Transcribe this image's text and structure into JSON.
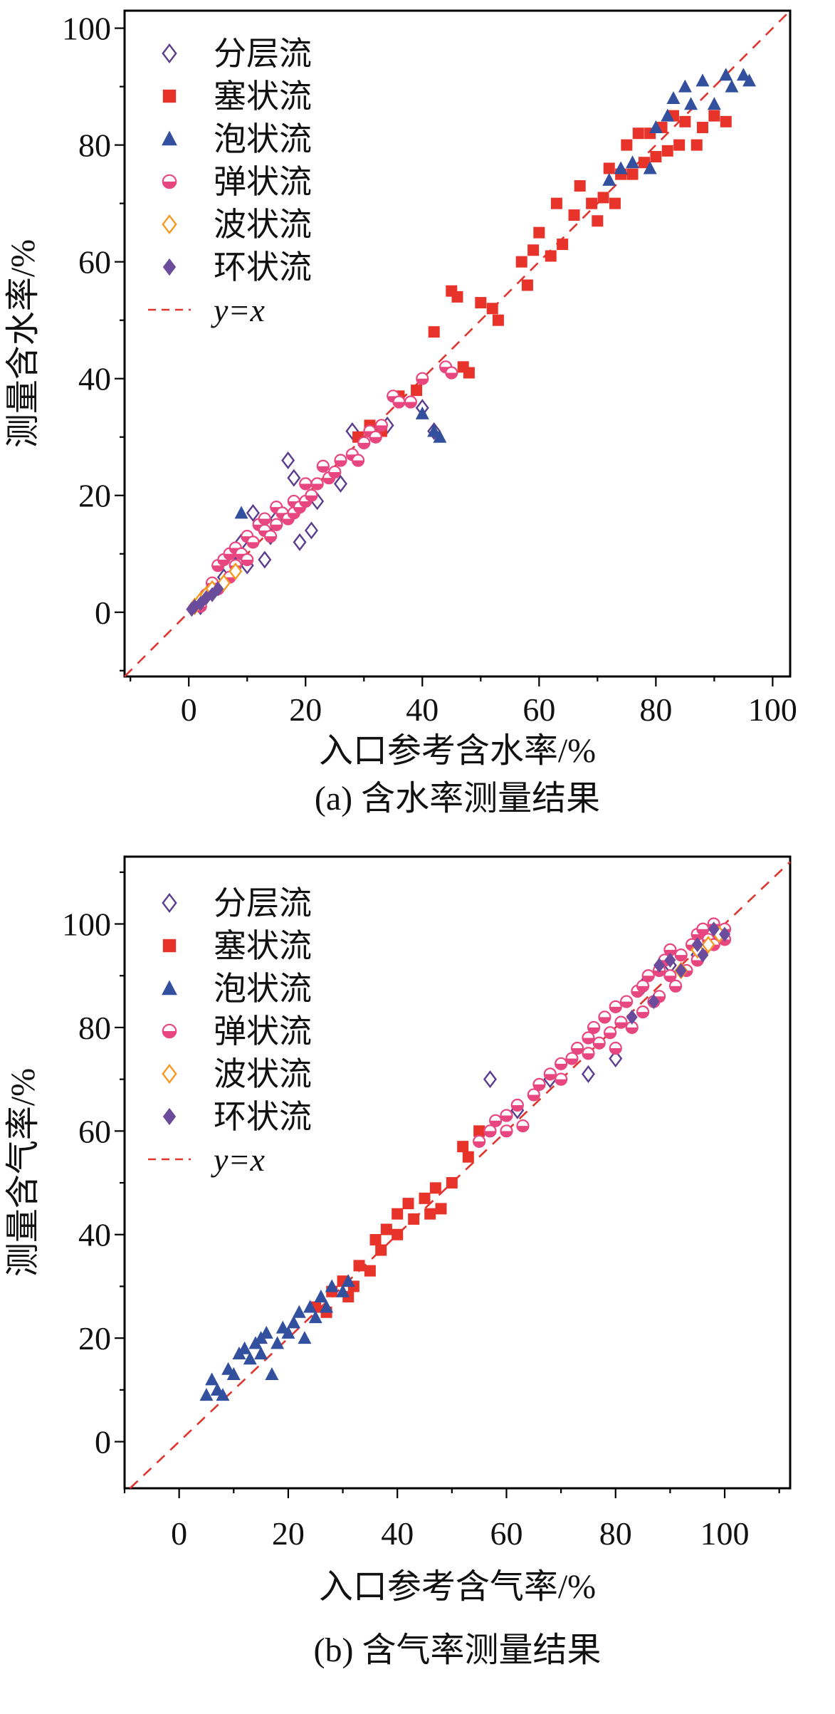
{
  "figure": {
    "background": "#ffffff",
    "axis_color": "#000000"
  },
  "chart_data": [
    {
      "id": "a",
      "type": "scatter",
      "caption": "(a) 含水率测量结果",
      "xlabel": "入口参考含水率/%",
      "ylabel": "测量含水率/%",
      "xlim": [
        -11,
        103
      ],
      "ylim": [
        -11,
        103
      ],
      "xticks": [
        0,
        20,
        40,
        60,
        80,
        100
      ],
      "yticks": [
        0,
        20,
        40,
        60,
        80,
        100
      ],
      "minor_tick_step": 10,
      "grid": false,
      "legend_position": "top-left",
      "reference_line": {
        "label": "y=x",
        "style": "dashed",
        "color": "#e0342f"
      },
      "series": [
        {
          "name": "分层流",
          "marker": "diamond-open",
          "color": "#5a3d8f",
          "points": [
            [
              2,
              1
            ],
            [
              4,
              4
            ],
            [
              6,
              6
            ],
            [
              8,
              8
            ],
            [
              9,
              12
            ],
            [
              10,
              8
            ],
            [
              11,
              17
            ],
            [
              13,
              9
            ],
            [
              14,
              13
            ],
            [
              15,
              16
            ],
            [
              17,
              26
            ],
            [
              18,
              23
            ],
            [
              19,
              12
            ],
            [
              21,
              14
            ],
            [
              22,
              19
            ],
            [
              26,
              22
            ],
            [
              28,
              31
            ],
            [
              34,
              32
            ],
            [
              40,
              35
            ],
            [
              42,
              31
            ]
          ]
        },
        {
          "name": "塞状流",
          "marker": "square",
          "color": "#e8332a",
          "points": [
            [
              29,
              30
            ],
            [
              31,
              32
            ],
            [
              33,
              31
            ],
            [
              36,
              37
            ],
            [
              39,
              38
            ],
            [
              42,
              48
            ],
            [
              45,
              55
            ],
            [
              46,
              54
            ],
            [
              47,
              42
            ],
            [
              48,
              41
            ],
            [
              50,
              53
            ],
            [
              52,
              52
            ],
            [
              53,
              50
            ],
            [
              57,
              60
            ],
            [
              58,
              56
            ],
            [
              59,
              62
            ],
            [
              60,
              65
            ],
            [
              62,
              61
            ],
            [
              63,
              70
            ],
            [
              64,
              63
            ],
            [
              66,
              68
            ],
            [
              67,
              73
            ],
            [
              69,
              70
            ],
            [
              70,
              67
            ],
            [
              71,
              71
            ],
            [
              72,
              76
            ],
            [
              73,
              70
            ],
            [
              74,
              75
            ],
            [
              75,
              80
            ],
            [
              76,
              75
            ],
            [
              77,
              82
            ],
            [
              78,
              77
            ],
            [
              79,
              82
            ],
            [
              80,
              78
            ],
            [
              81,
              83
            ],
            [
              82,
              79
            ],
            [
              83,
              85
            ],
            [
              84,
              80
            ],
            [
              85,
              84
            ],
            [
              87,
              80
            ],
            [
              88,
              83
            ],
            [
              90,
              85
            ],
            [
              92,
              84
            ]
          ]
        },
        {
          "name": "泡状流",
          "marker": "triangle",
          "color": "#32509e",
          "points": [
            [
              9,
              17
            ],
            [
              40,
              34
            ],
            [
              42,
              31
            ],
            [
              43,
              30
            ],
            [
              72,
              74
            ],
            [
              74,
              76
            ],
            [
              76,
              77
            ],
            [
              79,
              76
            ],
            [
              80,
              83
            ],
            [
              82,
              85
            ],
            [
              83,
              88
            ],
            [
              85,
              90
            ],
            [
              86,
              87
            ],
            [
              88,
              91
            ],
            [
              90,
              87
            ],
            [
              92,
              92
            ],
            [
              93,
              90
            ],
            [
              95,
              92
            ],
            [
              96,
              91
            ]
          ]
        },
        {
          "name": "弹状流",
          "marker": "circle-half",
          "color": "#e8467f",
          "points": [
            [
              2,
              1
            ],
            [
              3,
              3
            ],
            [
              4,
              5
            ],
            [
              5,
              4
            ],
            [
              5,
              8
            ],
            [
              6,
              9
            ],
            [
              7,
              6
            ],
            [
              7,
              10
            ],
            [
              8,
              8
            ],
            [
              8,
              11
            ],
            [
              9,
              10
            ],
            [
              10,
              9
            ],
            [
              10,
              13
            ],
            [
              11,
              12
            ],
            [
              12,
              15
            ],
            [
              13,
              14
            ],
            [
              13,
              16
            ],
            [
              14,
              13
            ],
            [
              15,
              15
            ],
            [
              15,
              18
            ],
            [
              16,
              17
            ],
            [
              17,
              16
            ],
            [
              18,
              17
            ],
            [
              18,
              19
            ],
            [
              19,
              18
            ],
            [
              20,
              19
            ],
            [
              20,
              22
            ],
            [
              21,
              20
            ],
            [
              22,
              22
            ],
            [
              23,
              25
            ],
            [
              24,
              23
            ],
            [
              25,
              24
            ],
            [
              26,
              26
            ],
            [
              28,
              27
            ],
            [
              29,
              26
            ],
            [
              30,
              29
            ],
            [
              31,
              31
            ],
            [
              32,
              30
            ],
            [
              33,
              32
            ],
            [
              35,
              37
            ],
            [
              36,
              36
            ],
            [
              38,
              36
            ],
            [
              40,
              40
            ],
            [
              44,
              42
            ],
            [
              45,
              41
            ]
          ]
        },
        {
          "name": "波状流",
          "marker": "diamond-open",
          "color": "#f59a23",
          "points": [
            [
              1,
              1
            ],
            [
              2,
              2
            ],
            [
              3,
              3
            ],
            [
              4,
              4
            ],
            [
              6,
              5
            ],
            [
              8,
              7
            ]
          ]
        },
        {
          "name": "环状流",
          "marker": "diamond",
          "color": "#6a4b9c",
          "points": [
            [
              0.5,
              0.5
            ],
            [
              1,
              1
            ],
            [
              2,
              1.5
            ],
            [
              3,
              2.5
            ],
            [
              4,
              3
            ],
            [
              5,
              4
            ]
          ]
        }
      ]
    },
    {
      "id": "b",
      "type": "scatter",
      "caption": "(b) 含气率测量结果",
      "xlabel": "入口参考含气率/%",
      "ylabel": "测量含气率/%",
      "xlim": [
        -10,
        112
      ],
      "ylim": [
        -9,
        113
      ],
      "xticks": [
        0,
        20,
        40,
        60,
        80,
        100
      ],
      "yticks": [
        0,
        20,
        40,
        60,
        80,
        100
      ],
      "minor_tick_step": 10,
      "grid": false,
      "legend_position": "top-left",
      "reference_line": {
        "label": "y=x",
        "style": "dashed",
        "color": "#e0342f"
      },
      "series": [
        {
          "name": "分层流",
          "marker": "diamond-open",
          "color": "#5a3d8f",
          "points": [
            [
              57,
              70
            ],
            [
              62,
              64
            ],
            [
              68,
              70
            ],
            [
              75,
              71
            ],
            [
              80,
              74
            ],
            [
              85,
              88
            ],
            [
              90,
              92
            ],
            [
              95,
              94
            ]
          ]
        },
        {
          "name": "塞状流",
          "marker": "square",
          "color": "#e8332a",
          "points": [
            [
              25,
              26
            ],
            [
              27,
              25
            ],
            [
              28,
              29
            ],
            [
              30,
              31
            ],
            [
              31,
              28
            ],
            [
              32,
              30
            ],
            [
              33,
              34
            ],
            [
              35,
              33
            ],
            [
              36,
              39
            ],
            [
              37,
              37
            ],
            [
              38,
              41
            ],
            [
              40,
              40
            ],
            [
              40,
              44
            ],
            [
              42,
              46
            ],
            [
              43,
              43
            ],
            [
              45,
              47
            ],
            [
              46,
              44
            ],
            [
              47,
              49
            ],
            [
              48,
              45
            ],
            [
              50,
              50
            ],
            [
              52,
              57
            ],
            [
              53,
              55
            ],
            [
              55,
              60
            ]
          ]
        },
        {
          "name": "泡状流",
          "marker": "triangle",
          "color": "#32509e",
          "points": [
            [
              5,
              9
            ],
            [
              6,
              12
            ],
            [
              7,
              10
            ],
            [
              8,
              9
            ],
            [
              9,
              14
            ],
            [
              10,
              13
            ],
            [
              11,
              17
            ],
            [
              12,
              18
            ],
            [
              13,
              16
            ],
            [
              14,
              19
            ],
            [
              15,
              17
            ],
            [
              15,
              20
            ],
            [
              16,
              21
            ],
            [
              17,
              13
            ],
            [
              18,
              19
            ],
            [
              19,
              22
            ],
            [
              20,
              21
            ],
            [
              21,
              23
            ],
            [
              22,
              25
            ],
            [
              23,
              20
            ],
            [
              24,
              26
            ],
            [
              25,
              24
            ],
            [
              26,
              28
            ],
            [
              27,
              26
            ],
            [
              28,
              30
            ],
            [
              30,
              29
            ],
            [
              31,
              31
            ]
          ]
        },
        {
          "name": "弹状流",
          "marker": "circle-half",
          "color": "#e8467f",
          "points": [
            [
              55,
              58
            ],
            [
              57,
              60
            ],
            [
              58,
              62
            ],
            [
              60,
              60
            ],
            [
              60,
              63
            ],
            [
              62,
              65
            ],
            [
              63,
              61
            ],
            [
              65,
              67
            ],
            [
              66,
              69
            ],
            [
              68,
              71
            ],
            [
              70,
              70
            ],
            [
              70,
              73
            ],
            [
              72,
              74
            ],
            [
              73,
              76
            ],
            [
              75,
              75
            ],
            [
              75,
              78
            ],
            [
              76,
              80
            ],
            [
              77,
              77
            ],
            [
              78,
              82
            ],
            [
              79,
              79
            ],
            [
              80,
              76
            ],
            [
              80,
              84
            ],
            [
              81,
              81
            ],
            [
              82,
              85
            ],
            [
              83,
              80
            ],
            [
              84,
              87
            ],
            [
              85,
              83
            ],
            [
              85,
              88
            ],
            [
              86,
              90
            ],
            [
              87,
              85
            ],
            [
              88,
              86
            ],
            [
              88,
              91
            ],
            [
              89,
              93
            ],
            [
              90,
              90
            ],
            [
              90,
              95
            ],
            [
              91,
              88
            ],
            [
              92,
              94
            ],
            [
              93,
              91
            ],
            [
              94,
              96
            ],
            [
              95,
              93
            ],
            [
              95,
              98
            ],
            [
              96,
              95
            ],
            [
              96,
              99
            ],
            [
              97,
              97
            ],
            [
              98,
              96
            ],
            [
              98,
              100
            ],
            [
              99,
              98
            ],
            [
              100,
              97
            ],
            [
              100,
              99
            ]
          ]
        },
        {
          "name": "波状流",
          "marker": "diamond-open",
          "color": "#f59a23",
          "points": [
            [
              92,
              91
            ],
            [
              95,
              95
            ],
            [
              97,
              96
            ],
            [
              99,
              98
            ]
          ]
        },
        {
          "name": "环状流",
          "marker": "diamond",
          "color": "#6a4b9c",
          "points": [
            [
              83,
              82
            ],
            [
              87,
              85
            ],
            [
              88,
              92
            ],
            [
              90,
              93
            ],
            [
              92,
              91
            ],
            [
              95,
              96
            ],
            [
              96,
              94
            ],
            [
              98,
              99
            ],
            [
              100,
              98
            ]
          ]
        }
      ]
    }
  ]
}
